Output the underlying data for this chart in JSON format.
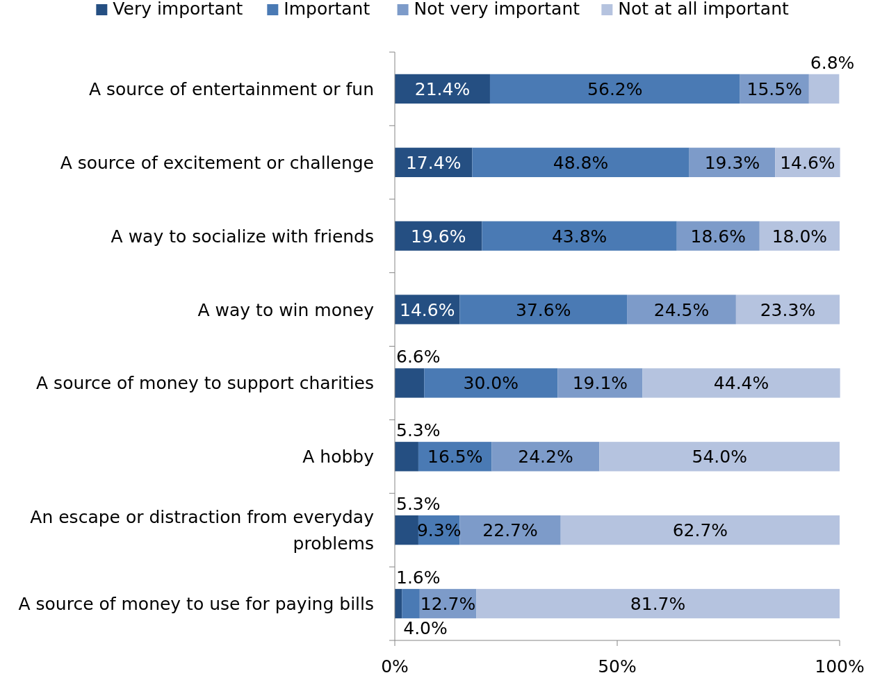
{
  "chart_data": {
    "type": "bar",
    "orientation": "horizontal",
    "stacked": true,
    "legend": "top",
    "categories": [
      "A source of entertainment or fun",
      "A source of excitement or challenge",
      "A way to socialize with friends",
      "A way to win money",
      "A source of money to support charities",
      "A hobby",
      "An escape or distraction from everyday problems",
      "A source of money to use for paying bills"
    ],
    "series": [
      {
        "name": "Very important",
        "color": "#254f82",
        "values": [
          21.4,
          17.4,
          19.6,
          14.6,
          6.6,
          5.3,
          5.3,
          1.6
        ],
        "value_labels": [
          "21.4%",
          "17.4%",
          "19.6%",
          "14.6%",
          "6.6%",
          "5.3%",
          "5.3%",
          "1.6%"
        ]
      },
      {
        "name": "Important",
        "color": "#4a7ab4",
        "values": [
          56.2,
          48.8,
          43.8,
          37.6,
          30.0,
          16.5,
          9.3,
          4.0
        ],
        "value_labels": [
          "56.2%",
          "48.8%",
          "43.8%",
          "37.6%",
          "30.0%",
          "16.5%",
          "9.3%",
          "4.0%"
        ]
      },
      {
        "name": "Not very important",
        "color": "#7d9bc9",
        "values": [
          15.5,
          19.3,
          18.6,
          24.5,
          19.1,
          24.2,
          22.7,
          12.7
        ],
        "value_labels": [
          "15.5%",
          "19.3%",
          "18.6%",
          "24.5%",
          "19.1%",
          "24.2%",
          "22.7%",
          "12.7%"
        ]
      },
      {
        "name": "Not at all important",
        "color": "#b5c3df",
        "values": [
          6.8,
          14.6,
          18.0,
          23.3,
          44.4,
          54.0,
          62.7,
          81.7
        ],
        "value_labels": [
          "6.8%",
          "14.6%",
          "18.0%",
          "23.3%",
          "44.4%",
          "54.0%",
          "62.7%",
          "81.7%"
        ]
      }
    ],
    "xlim": [
      0,
      100
    ],
    "xticks": [
      {
        "value": 0,
        "label": "0%"
      },
      {
        "value": 50,
        "label": "50%"
      },
      {
        "value": 100,
        "label": "100%"
      }
    ]
  }
}
